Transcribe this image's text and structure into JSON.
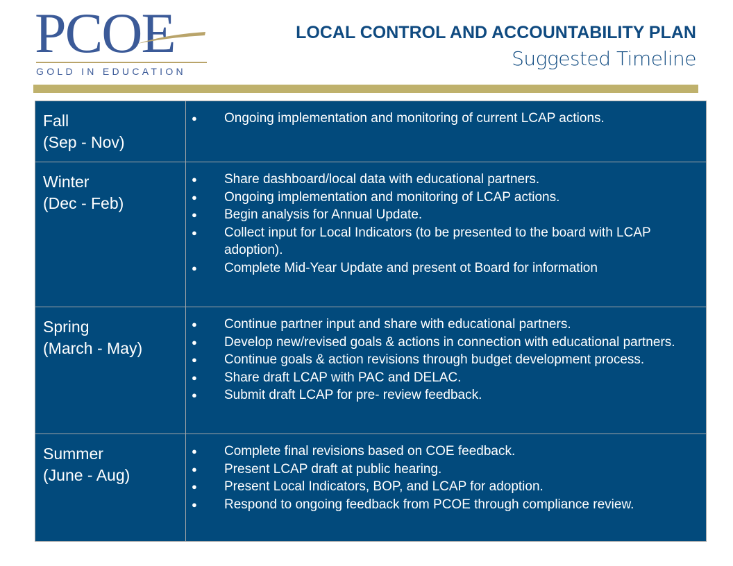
{
  "logo": {
    "letters": "PCOE",
    "tagline": "GOLD IN EDUCATION",
    "colors": {
      "blue": "#3b5a98",
      "gold": "#b9a46a"
    }
  },
  "header": {
    "title": "LOCAL CONTROL AND ACCOUNTABILITY PLAN",
    "subtitle": "Suggested Timeline"
  },
  "colors": {
    "table_bg": "#024a7c",
    "gold_bar": "#bfb16c",
    "title": "#0f4a80"
  },
  "timeline": [
    {
      "season": "Fall",
      "months": "(Sep - Nov)",
      "items": [
        "Ongoing implementation and monitoring of current LCAP actions."
      ]
    },
    {
      "season": "Winter",
      "months": "(Dec - Feb)",
      "items": [
        "Share dashboard/local data with educational partners.",
        "Ongoing implementation and monitoring of LCAP actions.",
        "Begin analysis for Annual Update.",
        "Collect input for Local Indicators (to be presented to the board with LCAP adoption).",
        "Complete Mid-Year Update and present ot Board for information"
      ]
    },
    {
      "season": "Spring",
      "months": "(March - May)",
      "items": [
        "Continue partner input and share with educational partners.",
        "Develop new/revised goals & actions in connection with educational partners.",
        "Continue goals & action revisions through budget development process.",
        "Share draft LCAP with PAC and DELAC.",
        "Submit draft LCAP for pre- review feedback."
      ]
    },
    {
      "season": "Summer",
      "months": "(June - Aug)",
      "items": [
        "Complete final revisions based on COE feedback.",
        "Present LCAP draft at public hearing.",
        "Present Local Indicators, BOP, and LCAP for adoption.",
        "Respond to ongoing feedback from PCOE through compliance review."
      ]
    }
  ]
}
